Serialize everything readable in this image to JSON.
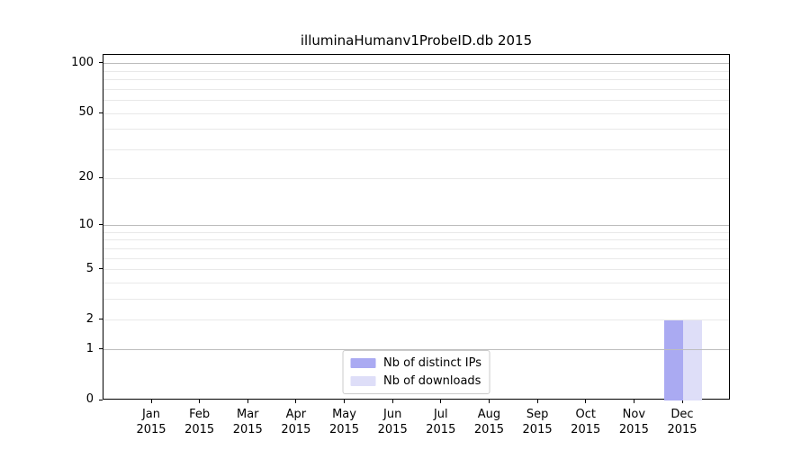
{
  "chart_data": {
    "type": "bar",
    "title": "illuminaHumanv1ProbeID.db 2015",
    "categories": [
      "Jan",
      "Feb",
      "Mar",
      "Apr",
      "May",
      "Jun",
      "Jul",
      "Aug",
      "Sep",
      "Oct",
      "Nov",
      "Dec"
    ],
    "year": "2015",
    "xlabel": "",
    "ylabel": "",
    "series": [
      {
        "name": "Nb of distinct IPs",
        "color": "#aaaaf2",
        "values": [
          0,
          0,
          0,
          0,
          0,
          0,
          0,
          0,
          0,
          0,
          0,
          2
        ]
      },
      {
        "name": "Nb of downloads",
        "color": "#dedef8",
        "values": [
          0,
          0,
          0,
          0,
          0,
          0,
          0,
          0,
          0,
          0,
          0,
          2
        ]
      }
    ],
    "yscale": "log1p",
    "ylim": [
      0,
      113
    ],
    "yticks": [
      0,
      1,
      2,
      5,
      10,
      20,
      50,
      100
    ],
    "grid": {
      "on": true,
      "major_values": [
        1,
        10,
        100
      ],
      "minor_values": [
        2,
        3,
        4,
        5,
        6,
        7,
        8,
        9,
        20,
        30,
        40,
        50,
        60,
        70,
        80,
        90
      ],
      "major_color": "#bdbdbd",
      "minor_color": "#e9e9e9",
      "axisbelow": false
    },
    "legend": {
      "position": "lower center",
      "entries": [
        "Nb of distinct IPs",
        "Nb of downloads"
      ]
    }
  }
}
